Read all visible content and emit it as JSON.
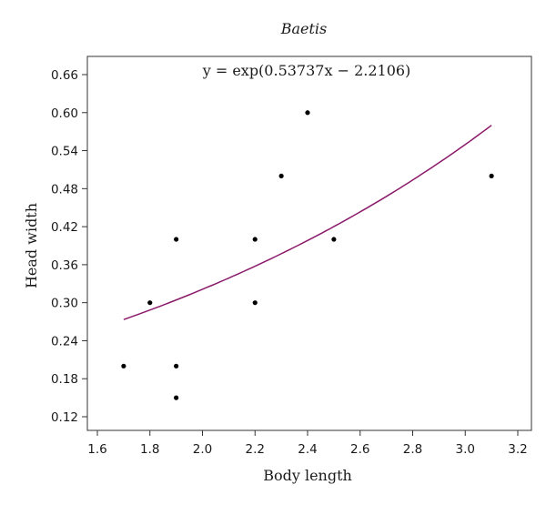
{
  "chart_data": {
    "type": "scatter",
    "title": "Baetis",
    "equation": "y = exp(0.53737x − 2.2106)",
    "xlabel": "Body length",
    "ylabel": "Head width",
    "xlim": [
      1.6,
      3.2
    ],
    "ylim": [
      0.12,
      0.66
    ],
    "xticks": [
      "1.6",
      "1.8",
      "2.0",
      "2.2",
      "2.4",
      "2.6",
      "2.8",
      "3.0",
      "3.2"
    ],
    "yticks": [
      "0.12",
      "0.18",
      "0.24",
      "0.30",
      "0.36",
      "0.42",
      "0.48",
      "0.54",
      "0.60",
      "0.66"
    ],
    "grid": false,
    "points": [
      {
        "x": 1.7,
        "y": 0.2
      },
      {
        "x": 1.8,
        "y": 0.3
      },
      {
        "x": 1.9,
        "y": 0.4
      },
      {
        "x": 1.9,
        "y": 0.2
      },
      {
        "x": 1.9,
        "y": 0.15
      },
      {
        "x": 2.2,
        "y": 0.4
      },
      {
        "x": 2.2,
        "y": 0.3
      },
      {
        "x": 2.3,
        "y": 0.5
      },
      {
        "x": 2.4,
        "y": 0.6
      },
      {
        "x": 2.5,
        "y": 0.4
      },
      {
        "x": 3.1,
        "y": 0.5
      }
    ],
    "fit": {
      "a": 0.53737,
      "b": -2.2106,
      "x_range": [
        1.7,
        3.1
      ]
    },
    "colors": {
      "points": "#000000",
      "fit_line": "#8b1a6b",
      "axes": "#333333"
    }
  }
}
